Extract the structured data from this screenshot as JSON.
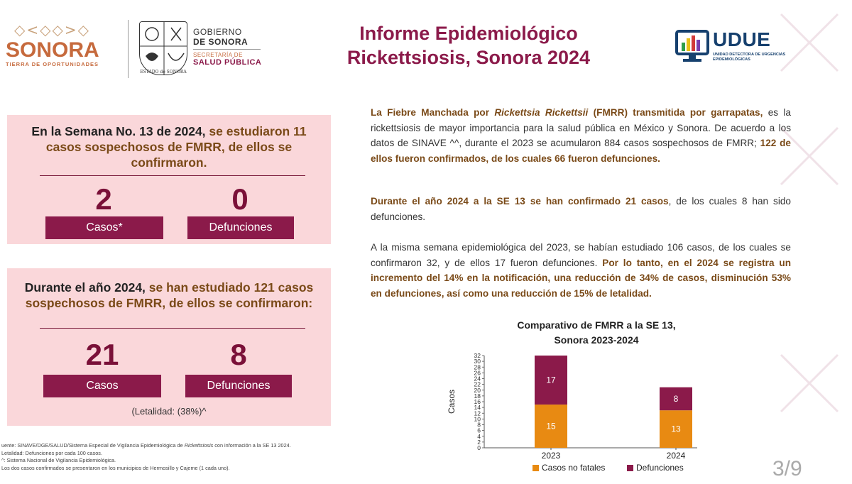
{
  "header": {
    "sonora_name": "SONORA",
    "sonora_tagline": "TIERRA DE OPORTUNIDADES",
    "seal_caption": "ESTADO de SONORA",
    "gov_line1": "GOBIERNO",
    "gov_line2": "DE SONORA",
    "gov_line3": "SECRETARÍA DE",
    "gov_line4": "SALUD PÚBLICA",
    "title_line1": "Informe Epidemiológico",
    "title_line2": "Rickettsiosis, Sonora 2024",
    "udue_name": "UDUE",
    "udue_sub": "UNIDAD DETECTORA DE URGENCIAS EPIDEMIOLÓGICAS"
  },
  "week_box": {
    "text_a": "En la Semana No. 13 de 2024,",
    "text_b": " se estudiaron 11 casos sospechosos de FMRR, de ellos se confirmaron.",
    "cases_value": "2",
    "cases_label": "Casos*",
    "deaths_value": "0",
    "deaths_label": "Defunciones"
  },
  "year_box": {
    "text_a": "Durante el año 2024,",
    "text_b": " se han estudiado 121 casos sospechosos de FMRR, de ellos se confirmaron:",
    "cases_value": "21",
    "cases_label": "Casos",
    "deaths_value": "8",
    "deaths_label": "Defunciones",
    "lethality": "(Letalidad: (38%)^"
  },
  "paragraphs": {
    "p1_a": "La Fiebre Manchada por ",
    "p1_b": "Rickettsia Rickettsii",
    "p1_c": " (FMRR) transmitida por garrapatas,",
    "p1_d": " es la rickettsiosis de mayor importancia para la salud pública en México y Sonora. De acuerdo a los datos de SINAVE ^^, durante el 2023 se acumularon 884 casos sospechosos de FMRR; ",
    "p1_e": "122 de ellos fueron confirmados, de los cuales 66 fueron defunciones.",
    "p2_a": "Durante el año 2024 a la SE 13 se han confirmado 21 casos",
    "p2_b": ", de los cuales 8 han sido defunciones.",
    "p3_a": " A la misma semana epidemiológica del 2023, se habían estudiado 106 casos, de los cuales se confirmaron 32, y de ellos 17 fueron defunciones. ",
    "p3_b": "Por lo tanto, en el 2024 se registra un incremento del 14% en la notificación, una reducción de 34% de casos, disminución 53% en defunciones, así como una reducción de 15% de letalidad."
  },
  "chart_data": {
    "type": "bar",
    "stacked": true,
    "title_line1": "Comparativo de FMRR a la SE 13,",
    "title_line2": "Sonora 2023-2024",
    "categories": [
      "2023",
      "2024"
    ],
    "series": [
      {
        "name": "Casos no fatales",
        "values": [
          15,
          13
        ],
        "color": "#e88a12"
      },
      {
        "name": "Defunciones",
        "values": [
          17,
          8
        ],
        "color": "#8b1a4a"
      }
    ],
    "ylabel": "Casos",
    "ylim": [
      0,
      32
    ],
    "yticks": [
      "0",
      "2",
      "4",
      "6",
      "8",
      "10",
      "12",
      "14",
      "16",
      "18",
      "20",
      "22",
      "24",
      "26",
      "28",
      "30",
      "32"
    ],
    "legend": "bottom"
  },
  "footnotes": {
    "f1_a": "uente: SINAVE/DGE/SALUD/Sistema Especial de Vigilancia Epidemiológica de ",
    "f1_b": "Rickettsiosis",
    "f1_c": " con información a la SE 13 2024.",
    "f2": "Letalidad: Defunciones por cada 100 casos.",
    "f3": "^: Sistema Nacional de Vigilancia Epidemiológica.",
    "f4": "Los dos casos confirmados se presentaron en los municipios de Hermosillo y Cajeme (1 cada uno)."
  },
  "page_number": "3/9",
  "colors": {
    "maroon": "#8b1a4a",
    "pink_box": "#fad7da",
    "orange": "#e88a12",
    "brown": "#7a4a18"
  }
}
